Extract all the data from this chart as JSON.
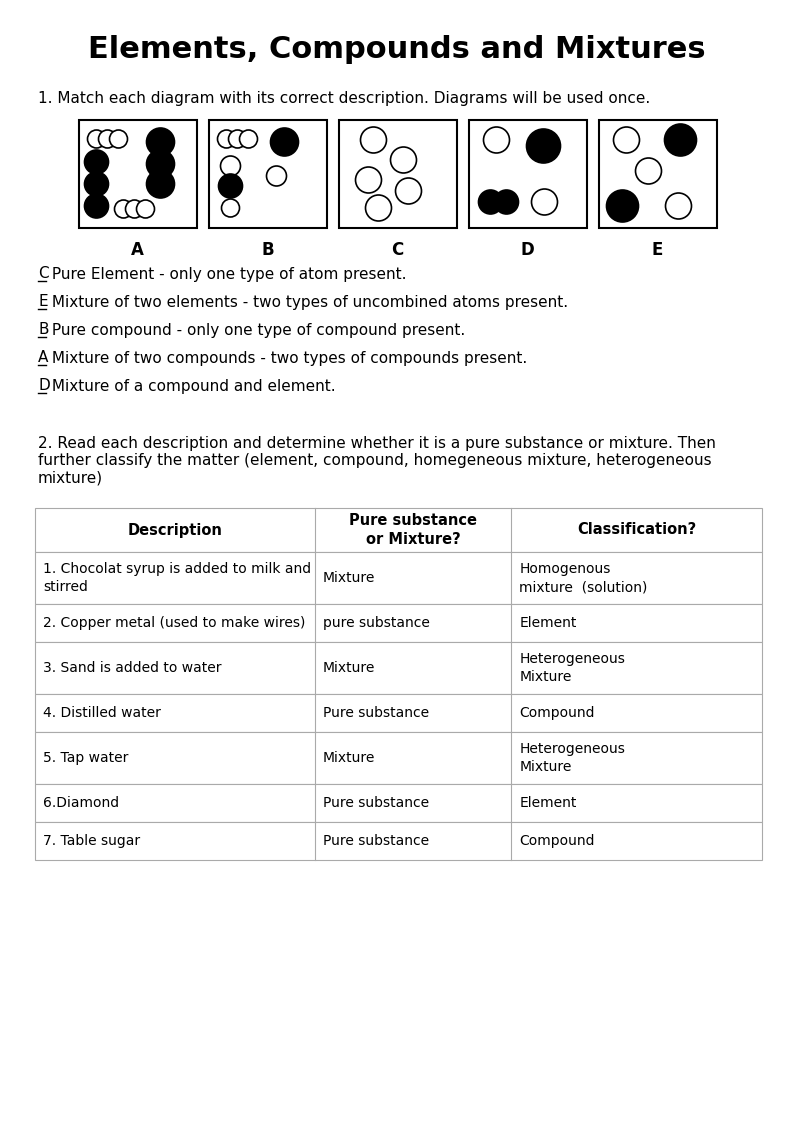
{
  "title": "Elements, Compounds and Mixtures",
  "background_color": "#ffffff",
  "q1_text": "1. Match each diagram with its correct description. Diagrams will be used once.",
  "diagram_labels": [
    "A",
    "B",
    "C",
    "D",
    "E"
  ],
  "descriptions": [
    {
      "letter": "C",
      "text": " Pure Element - only one type of atom present."
    },
    {
      "letter": "E",
      "text": " Mixture of two elements - two types of uncombined atoms present."
    },
    {
      "letter": "B",
      "text": " Pure compound - only one type of compound present."
    },
    {
      "letter": "A",
      "text": " Mixture of two compounds - two types of compounds present."
    },
    {
      "letter": "D",
      "text": " Mixture of a compound and element."
    }
  ],
  "q2_text": "2. Read each description and determine whether it is a pure substance or mixture. Then\nfurther classify the matter (element, compound, homegeneous mixture, heterogeneous\nmixture)",
  "table_headers": [
    "Description",
    "Pure substance\nor Mixture?",
    "Classification?"
  ],
  "table_rows": [
    [
      "1. Chocolat syrup is added to milk and\nstirred",
      "Mixture",
      "Homogenous\nmixture  (solution)"
    ],
    [
      "2. Copper metal (used to make wires)",
      "pure substance",
      "Element"
    ],
    [
      "3. Sand is added to water",
      "Mixture",
      "Heterogeneous\nMixture"
    ],
    [
      "4. Distilled water",
      "Pure substance",
      "Compound"
    ],
    [
      "5. Tap water",
      "Mixture",
      "Heterogeneous\nMixture"
    ],
    [
      "6.Diamond",
      "Pure substance",
      "Element"
    ],
    [
      "7. Table sugar",
      "Pure substance",
      "Compound"
    ]
  ]
}
